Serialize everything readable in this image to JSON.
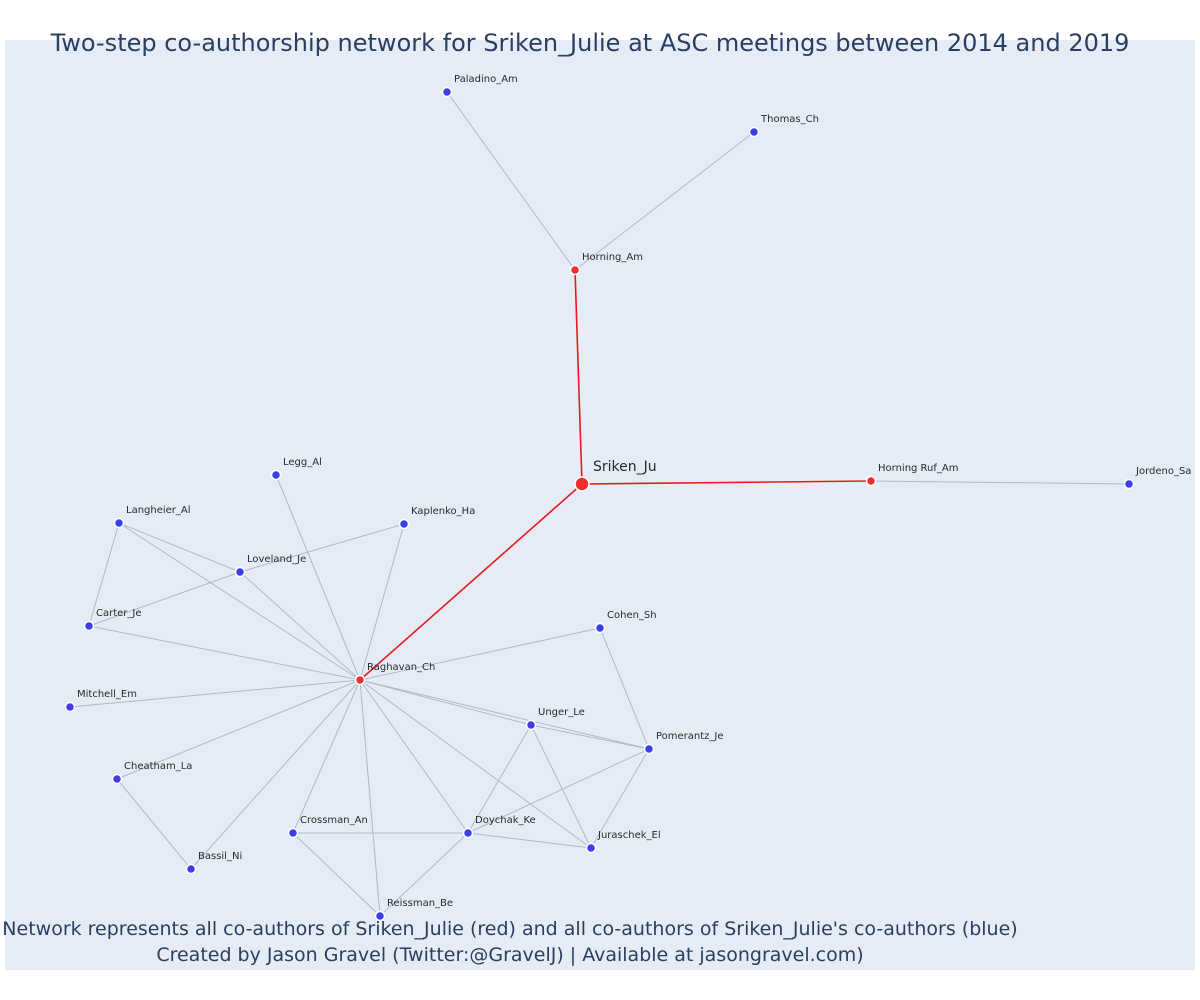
{
  "title": "Two-step co-authorship network for Sriken_Julie at ASC meetings between 2014 and 2019",
  "caption": {
    "line1": "Network represents all co-authors of Sriken_Julie (red) and all co-authors of Sriken_Julie's co-authors (blue)",
    "line2": "Created by Jason Gravel (Twitter:@GravelJ) | Available at jasongravel.com)"
  },
  "colors": {
    "red_node": "#ef2f2f",
    "blue_node": "#3d3df0",
    "primary_edge": "#e8191c",
    "secondary_edge": "#b3b7c8",
    "background": "#e5ecf6",
    "text": "#2a3f5f"
  },
  "chart_data": {
    "type": "network",
    "ego": "Sriken_Ju",
    "nodes": [
      {
        "id": "Sriken_Ju",
        "group": "ego"
      },
      {
        "id": "Horning_Am",
        "group": "coauthor"
      },
      {
        "id": "Horning Ruf_Am",
        "group": "coauthor"
      },
      {
        "id": "Raghavan_Ch",
        "group": "coauthor"
      },
      {
        "id": "Paladino_Am",
        "group": "second"
      },
      {
        "id": "Thomas_Ch",
        "group": "second"
      },
      {
        "id": "Jordeno_Sa",
        "group": "second"
      },
      {
        "id": "Legg_Al",
        "group": "second"
      },
      {
        "id": "Langheier_Al",
        "group": "second"
      },
      {
        "id": "Kaplenko_Ha",
        "group": "second"
      },
      {
        "id": "Loveland_Je",
        "group": "second"
      },
      {
        "id": "Carter_Je",
        "group": "second"
      },
      {
        "id": "Cohen_Sh",
        "group": "second"
      },
      {
        "id": "Mitchell_Em",
        "group": "second"
      },
      {
        "id": "Unger_Le",
        "group": "second"
      },
      {
        "id": "Pomerantz_Je",
        "group": "second"
      },
      {
        "id": "Cheatham_La",
        "group": "second"
      },
      {
        "id": "Crossman_An",
        "group": "second"
      },
      {
        "id": "Doychak_Ke",
        "group": "second"
      },
      {
        "id": "Juraschek_El",
        "group": "second"
      },
      {
        "id": "Bassil_Ni",
        "group": "second"
      },
      {
        "id": "Reissman_Be",
        "group": "second"
      }
    ],
    "edges": [
      [
        "Sriken_Ju",
        "Horning_Am"
      ],
      [
        "Sriken_Ju",
        "Horning Ruf_Am"
      ],
      [
        "Sriken_Ju",
        "Raghavan_Ch"
      ],
      [
        "Horning_Am",
        "Paladino_Am"
      ],
      [
        "Horning_Am",
        "Thomas_Ch"
      ],
      [
        "Horning Ruf_Am",
        "Jordeno_Sa"
      ],
      [
        "Raghavan_Ch",
        "Legg_Al"
      ],
      [
        "Raghavan_Ch",
        "Langheier_Al"
      ],
      [
        "Raghavan_Ch",
        "Kaplenko_Ha"
      ],
      [
        "Raghavan_Ch",
        "Loveland_Je"
      ],
      [
        "Raghavan_Ch",
        "Carter_Je"
      ],
      [
        "Raghavan_Ch",
        "Cohen_Sh"
      ],
      [
        "Raghavan_Ch",
        "Mitchell_Em"
      ],
      [
        "Raghavan_Ch",
        "Unger_Le"
      ],
      [
        "Raghavan_Ch",
        "Pomerantz_Je"
      ],
      [
        "Raghavan_Ch",
        "Cheatham_La"
      ],
      [
        "Raghavan_Ch",
        "Crossman_An"
      ],
      [
        "Raghavan_Ch",
        "Doychak_Ke"
      ],
      [
        "Raghavan_Ch",
        "Juraschek_El"
      ],
      [
        "Raghavan_Ch",
        "Bassil_Ni"
      ],
      [
        "Raghavan_Ch",
        "Reissman_Be"
      ],
      [
        "Langheier_Al",
        "Loveland_Je"
      ],
      [
        "Langheier_Al",
        "Carter_Je"
      ],
      [
        "Loveland_Je",
        "Kaplenko_Ha"
      ],
      [
        "Loveland_Je",
        "Carter_Je"
      ],
      [
        "Cohen_Sh",
        "Pomerantz_Je"
      ],
      [
        "Unger_Le",
        "Pomerantz_Je"
      ],
      [
        "Unger_Le",
        "Doychak_Ke"
      ],
      [
        "Unger_Le",
        "Juraschek_El"
      ],
      [
        "Pomerantz_Je",
        "Doychak_Ke"
      ],
      [
        "Pomerantz_Je",
        "Juraschek_El"
      ],
      [
        "Crossman_An",
        "Doychak_Ke"
      ],
      [
        "Crossman_An",
        "Reissman_Be"
      ],
      [
        "Doychak_Ke",
        "Juraschek_El"
      ],
      [
        "Doychak_Ke",
        "Reissman_Be"
      ],
      [
        "Cheatham_La",
        "Bassil_Ni"
      ]
    ]
  }
}
